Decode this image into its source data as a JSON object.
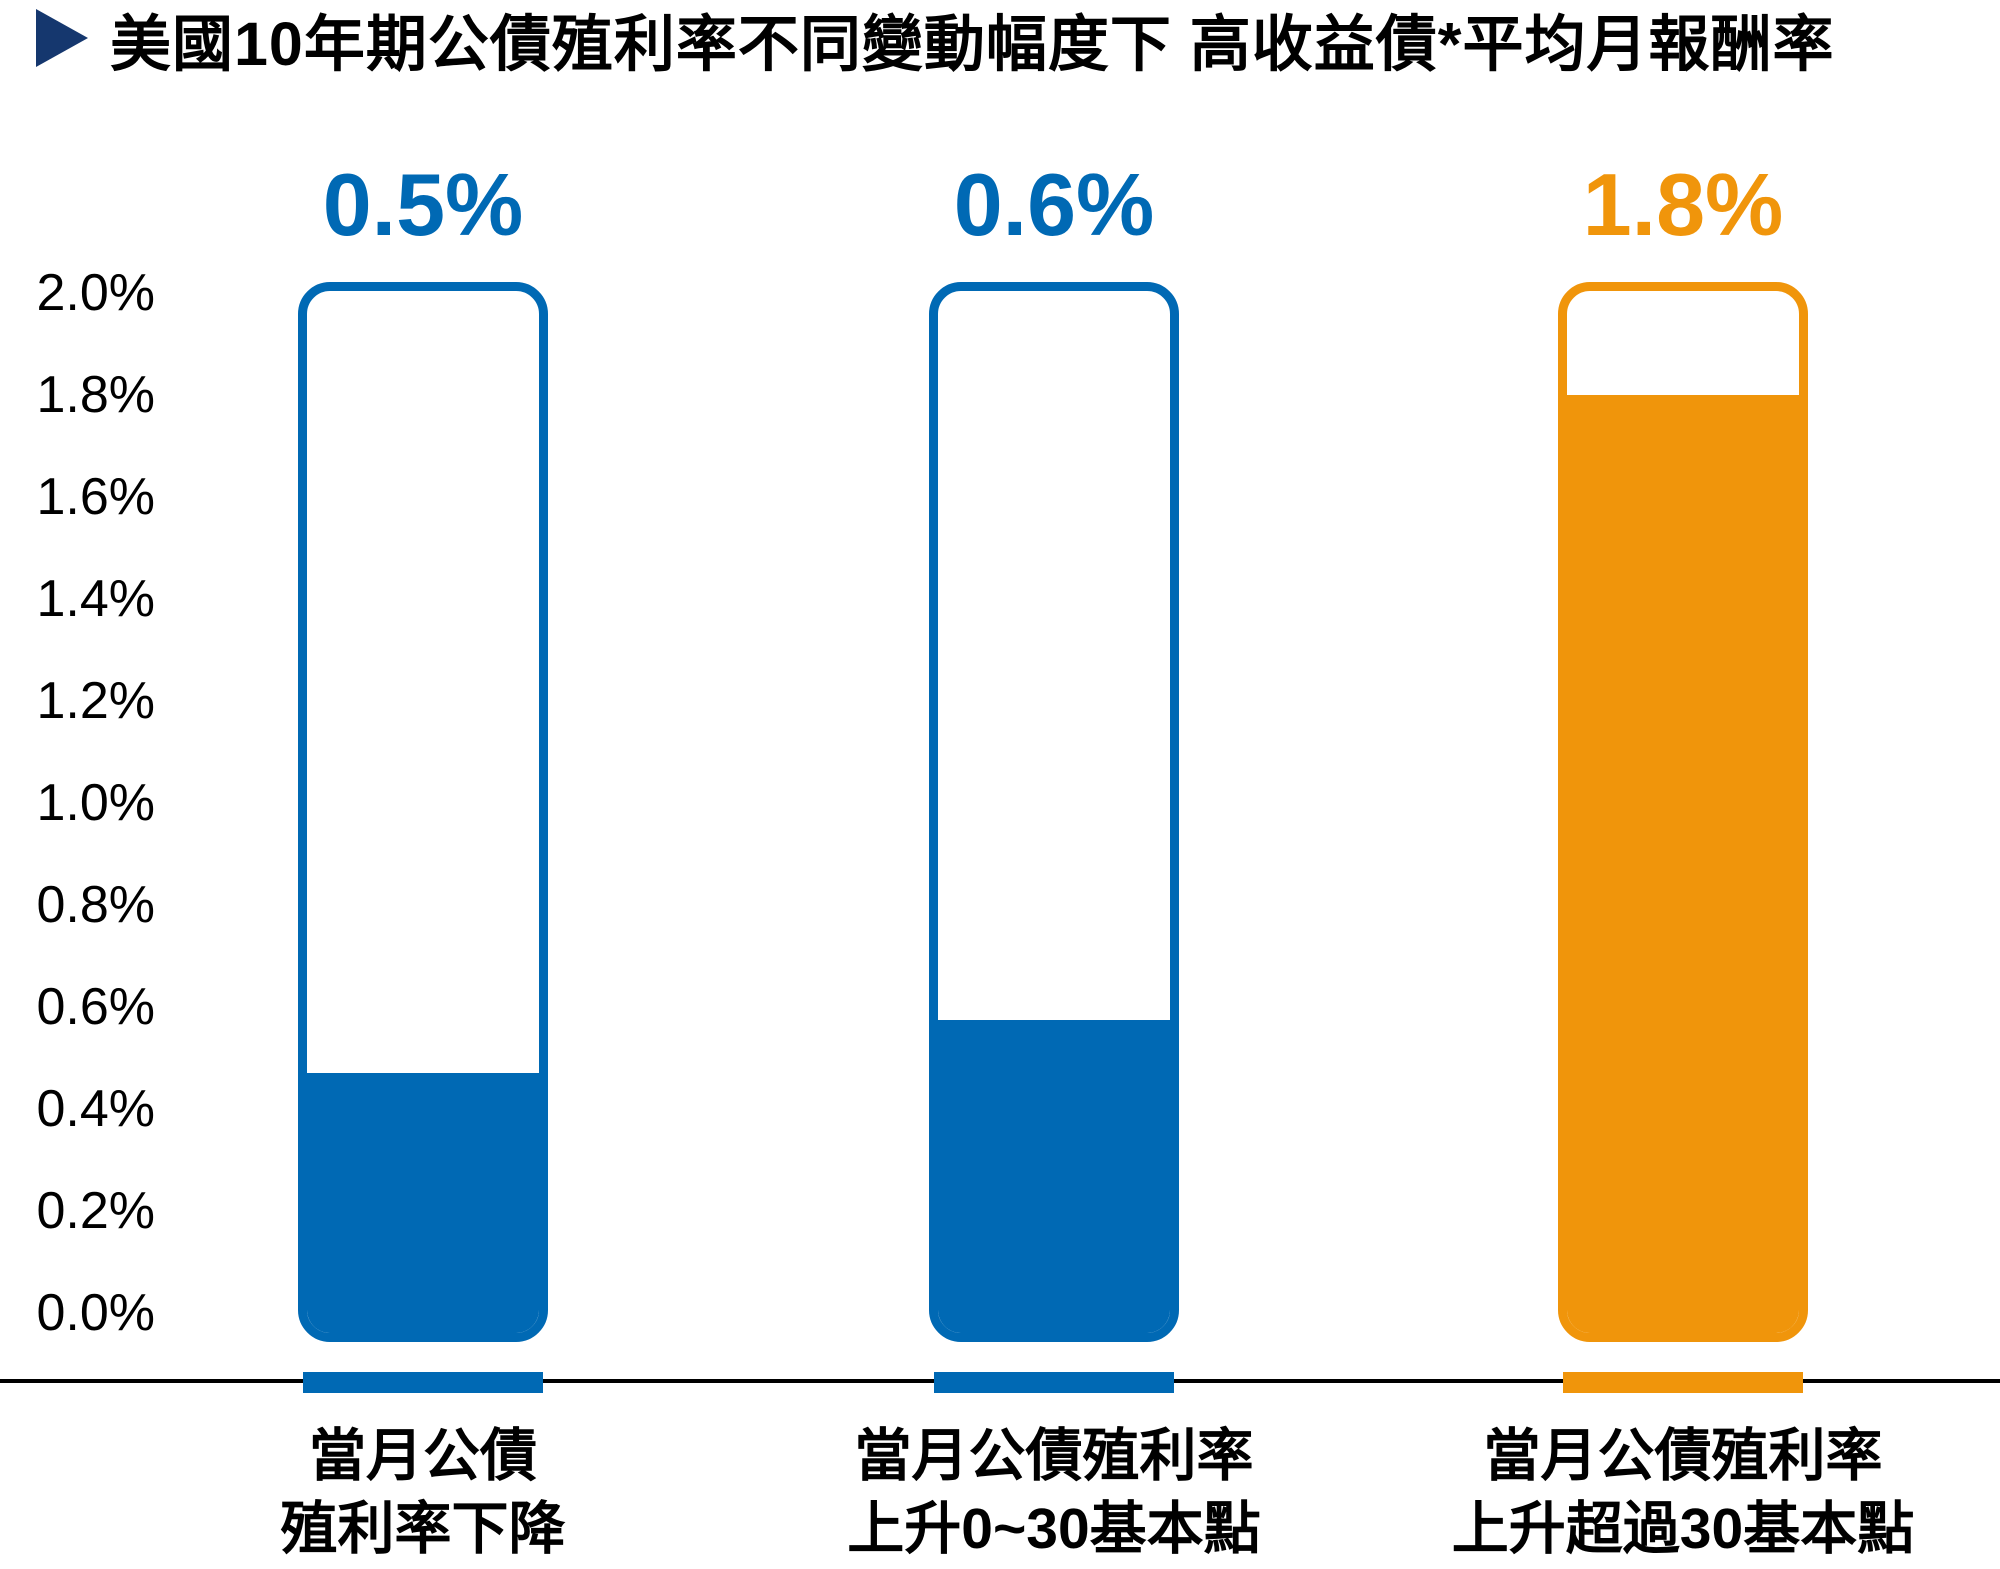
{
  "title": {
    "marker": "triangle-right",
    "marker_color": "#15376E",
    "text": "美國10年期公債殖利率不同變動幅度下 高收益債*平均月報酬率"
  },
  "colors": {
    "blue": "#0069B4",
    "orange": "#F0950B",
    "axis": "#000000",
    "text": "#000000",
    "background": "#FFFFFF"
  },
  "chart_data": {
    "type": "bar",
    "title": "美國10年期公債殖利率不同變動幅度下 高收益債*平均月報酬率",
    "xlabel": "",
    "ylabel": "",
    "ylim": [
      0,
      2.0
    ],
    "ytick_step": 0.2,
    "yticks": [
      "2.0%",
      "1.8%",
      "1.6%",
      "1.4%",
      "1.2%",
      "1.0%",
      "0.8%",
      "0.6%",
      "0.4%",
      "0.2%",
      "0.0%"
    ],
    "grid": false,
    "legend": "none",
    "bar_style": "thermometer-outline-with-fill",
    "value_label_position": "above",
    "categories": [
      "當月公債殖利率下降",
      "當月公債殖利率上升0~30基本點",
      "當月公債殖利率上升超過30基本點"
    ],
    "values": [
      0.5,
      0.6,
      1.8
    ],
    "bars": [
      {
        "category_line1": "當月公債",
        "category_line2": "殖利率下降",
        "value": 0.5,
        "label": "0.5%",
        "color": "#0069B4"
      },
      {
        "category_line1": "當月公債殖利率",
        "category_line2": "上升0~30基本點",
        "value": 0.6,
        "label": "0.6%",
        "color": "#0069B4"
      },
      {
        "category_line1": "當月公債殖利率",
        "category_line2": "上升超過30基本點",
        "value": 1.8,
        "label": "1.8%",
        "color": "#F0950B"
      }
    ]
  }
}
